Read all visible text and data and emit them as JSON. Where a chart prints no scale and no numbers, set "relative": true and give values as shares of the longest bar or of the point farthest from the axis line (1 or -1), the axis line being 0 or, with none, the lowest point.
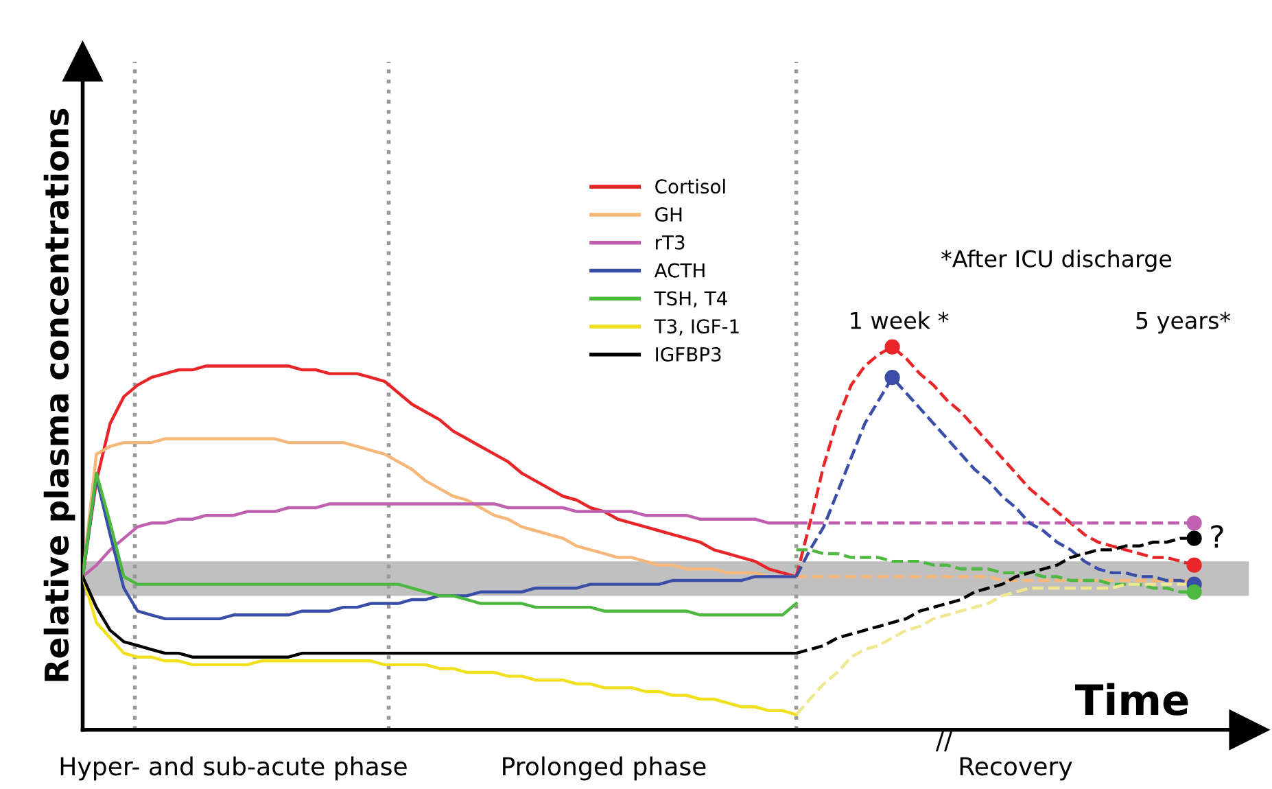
{
  "chart_data": {
    "type": "line",
    "relative": true,
    "ylabel": "Relative plasma concentrations",
    "xlabel": "Time",
    "tick_labels": false,
    "legend": "top",
    "categories": [
      null,
      null,
      null,
      null,
      null,
      null,
      null,
      null,
      null,
      null,
      null,
      null,
      null,
      null,
      null,
      null,
      null,
      null,
      null,
      null,
      null,
      null,
      null,
      null,
      null,
      null,
      null,
      null,
      null,
      null,
      null,
      null,
      null,
      null,
      null,
      null,
      null,
      null,
      null,
      null,
      null,
      null,
      null,
      null,
      null,
      null,
      null,
      null,
      null,
      null,
      null,
      null,
      null,
      null,
      null,
      null,
      null,
      null,
      null,
      null,
      null,
      null,
      null,
      null,
      null,
      null,
      null,
      null,
      null,
      null,
      null,
      null,
      null,
      null,
      null,
      null,
      null,
      null,
      null,
      null,
      null,
      null,
      null,
      null,
      null,
      null
    ],
    "series": [
      {
        "name": "Cortisol",
        "color": "#e8262a",
        "values": [
          0.4,
          0.65,
          0.8,
          0.87,
          0.9,
          0.92,
          0.93,
          0.94,
          0.94,
          0.95,
          0.95,
          0.95,
          0.95,
          0.95,
          0.95,
          0.95,
          0.94,
          0.94,
          0.93,
          0.93,
          0.93,
          0.92,
          0.91,
          0.88,
          0.85,
          0.83,
          0.81,
          0.78,
          0.76,
          0.74,
          0.72,
          0.7,
          0.67,
          0.65,
          0.63,
          0.61,
          0.6,
          0.58,
          0.57,
          0.55,
          0.54,
          0.53,
          0.52,
          0.51,
          0.5,
          0.49,
          0.47,
          0.46,
          0.45,
          0.44,
          0.42,
          0.41,
          0.4,
          null,
          null,
          null,
          null,
          null,
          null,
          null,
          null,
          null,
          null,
          null,
          null,
          null,
          null,
          null,
          null,
          null,
          null,
          null,
          null,
          null,
          null,
          null,
          null,
          null,
          null,
          null,
          null,
          null,
          null,
          null,
          null,
          null
        ]
      },
      {
        "name": "GH",
        "color": "#f5b87a",
        "values": [
          0.4,
          0.72,
          0.74,
          0.75,
          0.75,
          0.75,
          0.76,
          0.76,
          0.76,
          0.76,
          0.76,
          0.76,
          0.76,
          0.76,
          0.76,
          0.75,
          0.75,
          0.75,
          0.75,
          0.75,
          0.74,
          0.73,
          0.72,
          0.7,
          0.68,
          0.65,
          0.63,
          0.61,
          0.6,
          0.58,
          0.56,
          0.55,
          0.53,
          0.52,
          0.51,
          0.5,
          0.48,
          0.47,
          0.46,
          0.45,
          0.45,
          0.44,
          0.43,
          0.43,
          0.42,
          0.42,
          0.42,
          0.41,
          0.41,
          0.41,
          0.4,
          0.4,
          0.4,
          null,
          null,
          null,
          null,
          null,
          null,
          null,
          null,
          null,
          null,
          null,
          null,
          null,
          null,
          null,
          null,
          null,
          null,
          null,
          null,
          null,
          null,
          null,
          null,
          null,
          null,
          null,
          null,
          null,
          null,
          null,
          null,
          null
        ]
      },
      {
        "name": "rT3",
        "color": "#c060b0",
        "values": [
          0.4,
          0.43,
          0.47,
          0.5,
          0.53,
          0.54,
          0.54,
          0.55,
          0.55,
          0.56,
          0.56,
          0.56,
          0.57,
          0.57,
          0.57,
          0.58,
          0.58,
          0.58,
          0.59,
          0.59,
          0.59,
          0.59,
          0.59,
          0.59,
          0.59,
          0.59,
          0.59,
          0.59,
          0.59,
          0.59,
          0.59,
          0.58,
          0.58,
          0.58,
          0.58,
          0.58,
          0.57,
          0.57,
          0.57,
          0.57,
          0.57,
          0.56,
          0.56,
          0.56,
          0.56,
          0.55,
          0.55,
          0.55,
          0.55,
          0.55,
          0.54,
          0.54,
          0.54,
          null,
          null,
          null,
          null,
          null,
          null,
          null,
          null,
          null,
          null,
          null,
          null,
          null,
          null,
          null,
          null,
          null,
          null,
          null,
          null,
          null,
          null,
          null,
          null,
          null,
          null,
          null,
          null,
          null,
          null,
          null,
          null,
          null
        ]
      },
      {
        "name": "ACTH",
        "color": "#3a4ea8",
        "values": [
          0.4,
          0.66,
          0.51,
          0.37,
          0.31,
          0.3,
          0.29,
          0.29,
          0.29,
          0.29,
          0.29,
          0.3,
          0.3,
          0.3,
          0.3,
          0.3,
          0.31,
          0.31,
          0.31,
          0.32,
          0.32,
          0.33,
          0.33,
          0.33,
          0.34,
          0.34,
          0.35,
          0.35,
          0.35,
          0.36,
          0.36,
          0.36,
          0.36,
          0.37,
          0.37,
          0.37,
          0.37,
          0.38,
          0.38,
          0.38,
          0.38,
          0.38,
          0.38,
          0.39,
          0.39,
          0.39,
          0.39,
          0.39,
          0.39,
          0.4,
          0.4,
          0.4,
          0.4,
          null,
          null,
          null,
          null,
          null,
          null,
          null,
          null,
          null,
          null,
          null,
          null,
          null,
          null,
          null,
          null,
          null,
          null,
          null,
          null,
          null,
          null,
          null,
          null,
          null,
          null,
          null,
          null,
          null,
          null,
          null,
          null,
          null
        ]
      },
      {
        "name": "TSH, T4",
        "color": "#4cb840",
        "values": [
          0.4,
          0.67,
          0.54,
          0.4,
          0.38,
          0.38,
          0.38,
          0.38,
          0.38,
          0.38,
          0.38,
          0.38,
          0.38,
          0.38,
          0.38,
          0.38,
          0.38,
          0.38,
          0.38,
          0.38,
          0.38,
          0.38,
          0.38,
          0.38,
          0.37,
          0.36,
          0.35,
          0.35,
          0.34,
          0.33,
          0.33,
          0.33,
          0.33,
          0.32,
          0.32,
          0.32,
          0.32,
          0.32,
          0.31,
          0.31,
          0.31,
          0.31,
          0.31,
          0.31,
          0.31,
          0.3,
          0.3,
          0.3,
          0.3,
          0.3,
          0.3,
          0.3,
          0.33,
          null,
          null,
          null,
          null,
          null,
          null,
          null,
          null,
          null,
          null,
          null,
          null,
          null,
          null,
          null,
          null,
          null,
          null,
          null,
          null,
          null,
          null,
          null,
          null,
          null,
          null,
          null,
          null,
          null,
          null,
          null,
          null,
          null
        ]
      },
      {
        "name": "T3, IGF-1",
        "color": "#f0e020",
        "values": [
          0.4,
          0.28,
          0.24,
          0.2,
          0.19,
          0.19,
          0.18,
          0.18,
          0.17,
          0.17,
          0.17,
          0.17,
          0.17,
          0.18,
          0.18,
          0.18,
          0.18,
          0.18,
          0.18,
          0.18,
          0.18,
          0.18,
          0.17,
          0.17,
          0.17,
          0.17,
          0.16,
          0.16,
          0.15,
          0.15,
          0.15,
          0.14,
          0.14,
          0.13,
          0.13,
          0.13,
          0.12,
          0.12,
          0.11,
          0.11,
          0.11,
          0.1,
          0.1,
          0.09,
          0.09,
          0.08,
          0.08,
          0.07,
          0.06,
          0.06,
          0.05,
          0.05,
          0.04,
          null,
          null,
          null,
          null,
          null,
          null,
          null,
          null,
          null,
          null,
          null,
          null,
          null,
          null,
          null,
          null,
          null,
          null,
          null,
          null,
          null,
          null,
          null,
          null,
          null,
          null,
          null,
          null,
          null,
          null,
          null,
          null,
          null
        ]
      },
      {
        "name": "IGFBP3",
        "color": "#000000",
        "values": [
          0.4,
          0.32,
          0.26,
          0.23,
          0.22,
          0.21,
          0.2,
          0.2,
          0.19,
          0.19,
          0.19,
          0.19,
          0.19,
          0.19,
          0.19,
          0.19,
          0.2,
          0.2,
          0.2,
          0.2,
          0.2,
          0.2,
          0.2,
          0.2,
          0.2,
          0.2,
          0.2,
          0.2,
          0.2,
          0.2,
          0.2,
          0.2,
          0.2,
          0.2,
          0.2,
          0.2,
          0.2,
          0.2,
          0.2,
          0.2,
          0.2,
          0.2,
          0.2,
          0.2,
          0.2,
          0.2,
          0.2,
          0.2,
          0.2,
          0.2,
          0.2,
          0.2,
          0.2,
          null,
          null,
          null,
          null,
          null,
          null,
          null,
          null,
          null,
          null,
          null,
          null,
          null,
          null,
          null,
          null,
          null,
          null,
          null,
          null,
          null,
          null,
          null,
          null,
          null,
          null,
          null,
          null,
          null,
          null,
          null,
          null,
          null
        ]
      },
      {
        "color": "#e8262a",
        "line_style": "dashed",
        "values": [
          null,
          null,
          null,
          null,
          null,
          null,
          null,
          null,
          null,
          null,
          null,
          null,
          null,
          null,
          null,
          null,
          null,
          null,
          null,
          null,
          null,
          null,
          null,
          null,
          null,
          null,
          null,
          null,
          null,
          null,
          null,
          null,
          null,
          null,
          null,
          null,
          null,
          null,
          null,
          null,
          null,
          null,
          null,
          null,
          null,
          null,
          null,
          null,
          null,
          null,
          null,
          null,
          0.4,
          0.54,
          0.69,
          0.81,
          0.9,
          0.95,
          0.98,
          1.0,
          0.97,
          0.93,
          0.9,
          0.86,
          0.83,
          0.79,
          0.75,
          0.71,
          0.67,
          0.63,
          0.6,
          0.57,
          0.54,
          0.51,
          0.49,
          0.48,
          0.47,
          0.46,
          0.45,
          0.45,
          0.44,
          0.43,
          null,
          null,
          null,
          null
        ]
      },
      {
        "color": "#f5b87a",
        "line_style": "dashed",
        "values": [
          null,
          null,
          null,
          null,
          null,
          null,
          null,
          null,
          null,
          null,
          null,
          null,
          null,
          null,
          null,
          null,
          null,
          null,
          null,
          null,
          null,
          null,
          null,
          null,
          null,
          null,
          null,
          null,
          null,
          null,
          null,
          null,
          null,
          null,
          null,
          null,
          null,
          null,
          null,
          null,
          null,
          null,
          null,
          null,
          null,
          null,
          null,
          null,
          null,
          null,
          null,
          null,
          0.4,
          0.4,
          0.4,
          0.4,
          0.4,
          0.4,
          0.4,
          0.4,
          0.4,
          0.4,
          0.4,
          0.4,
          0.4,
          0.4,
          0.4,
          0.39,
          0.39,
          0.39,
          0.39,
          0.39,
          0.39,
          0.39,
          0.39,
          0.39,
          0.39,
          0.39,
          0.39,
          0.39,
          0.39,
          0.39,
          null,
          null,
          null,
          null
        ]
      },
      {
        "color": "#c060b0",
        "line_style": "dashed",
        "values": [
          null,
          null,
          null,
          null,
          null,
          null,
          null,
          null,
          null,
          null,
          null,
          null,
          null,
          null,
          null,
          null,
          null,
          null,
          null,
          null,
          null,
          null,
          null,
          null,
          null,
          null,
          null,
          null,
          null,
          null,
          null,
          null,
          null,
          null,
          null,
          null,
          null,
          null,
          null,
          null,
          null,
          null,
          null,
          null,
          null,
          null,
          null,
          null,
          null,
          null,
          null,
          null,
          0.54,
          0.54,
          0.54,
          0.54,
          0.54,
          0.54,
          0.54,
          0.54,
          0.54,
          0.54,
          0.54,
          0.54,
          0.54,
          0.54,
          0.54,
          0.54,
          0.54,
          0.54,
          0.54,
          0.54,
          0.54,
          0.54,
          0.54,
          0.54,
          0.54,
          0.54,
          0.54,
          0.54,
          0.54,
          0.54,
          null,
          null,
          null,
          null
        ]
      },
      {
        "color": "#3a4ea8",
        "line_style": "dashed",
        "values": [
          null,
          null,
          null,
          null,
          null,
          null,
          null,
          null,
          null,
          null,
          null,
          null,
          null,
          null,
          null,
          null,
          null,
          null,
          null,
          null,
          null,
          null,
          null,
          null,
          null,
          null,
          null,
          null,
          null,
          null,
          null,
          null,
          null,
          null,
          null,
          null,
          null,
          null,
          null,
          null,
          null,
          null,
          null,
          null,
          null,
          null,
          null,
          null,
          null,
          null,
          null,
          null,
          0.4,
          0.47,
          0.53,
          0.62,
          0.71,
          0.8,
          0.86,
          0.92,
          0.88,
          0.84,
          0.8,
          0.76,
          0.72,
          0.68,
          0.65,
          0.61,
          0.58,
          0.54,
          0.52,
          0.49,
          0.47,
          0.44,
          0.42,
          0.41,
          0.41,
          0.4,
          0.4,
          0.39,
          0.39,
          0.38,
          null,
          null,
          null,
          null
        ]
      },
      {
        "color": "#4cb840",
        "line_style": "dashed",
        "values": [
          null,
          null,
          null,
          null,
          null,
          null,
          null,
          null,
          null,
          null,
          null,
          null,
          null,
          null,
          null,
          null,
          null,
          null,
          null,
          null,
          null,
          null,
          null,
          null,
          null,
          null,
          null,
          null,
          null,
          null,
          null,
          null,
          null,
          null,
          null,
          null,
          null,
          null,
          null,
          null,
          null,
          null,
          null,
          null,
          null,
          null,
          null,
          null,
          null,
          null,
          null,
          null,
          0.47,
          0.47,
          0.46,
          0.46,
          0.45,
          0.45,
          0.45,
          0.44,
          0.44,
          0.44,
          0.43,
          0.43,
          0.42,
          0.42,
          0.42,
          0.41,
          0.41,
          0.41,
          0.4,
          0.4,
          0.39,
          0.39,
          0.39,
          0.38,
          0.38,
          0.38,
          0.37,
          0.37,
          0.36,
          0.36,
          null,
          null,
          null,
          null
        ]
      },
      {
        "color": "#f0e890",
        "line_style": "dashed",
        "values": [
          null,
          null,
          null,
          null,
          null,
          null,
          null,
          null,
          null,
          null,
          null,
          null,
          null,
          null,
          null,
          null,
          null,
          null,
          null,
          null,
          null,
          null,
          null,
          null,
          null,
          null,
          null,
          null,
          null,
          null,
          null,
          null,
          null,
          null,
          null,
          null,
          null,
          null,
          null,
          null,
          null,
          null,
          null,
          null,
          null,
          null,
          null,
          null,
          null,
          null,
          null,
          null,
          0.04,
          0.08,
          0.12,
          0.15,
          0.19,
          0.21,
          0.22,
          0.24,
          0.26,
          0.27,
          0.29,
          0.3,
          0.31,
          0.32,
          0.33,
          0.35,
          0.36,
          0.37,
          0.37,
          0.37,
          0.37,
          0.37,
          0.37,
          0.37,
          0.38,
          0.38,
          0.38,
          0.38,
          0.38,
          0.38,
          null,
          null,
          null,
          null
        ]
      },
      {
        "color": "#000000",
        "line_style": "dashed",
        "values": [
          null,
          null,
          null,
          null,
          null,
          null,
          null,
          null,
          null,
          null,
          null,
          null,
          null,
          null,
          null,
          null,
          null,
          null,
          null,
          null,
          null,
          null,
          null,
          null,
          null,
          null,
          null,
          null,
          null,
          null,
          null,
          null,
          null,
          null,
          null,
          null,
          null,
          null,
          null,
          null,
          null,
          null,
          null,
          null,
          null,
          null,
          null,
          null,
          null,
          null,
          null,
          null,
          0.2,
          0.21,
          0.22,
          0.24,
          0.25,
          0.26,
          0.27,
          0.28,
          0.29,
          0.31,
          0.32,
          0.33,
          0.34,
          0.36,
          0.37,
          0.38,
          0.4,
          0.41,
          0.42,
          0.43,
          0.45,
          0.46,
          0.47,
          0.47,
          0.48,
          0.48,
          0.49,
          0.49,
          0.5,
          0.5,
          null,
          null,
          null,
          null
        ]
      },
      {
        "color": "#e8262a",
        "marker": "circle",
        "values": [
          null,
          null,
          null,
          null,
          null,
          null,
          null,
          null,
          null,
          null,
          null,
          null,
          null,
          null,
          null,
          null,
          null,
          null,
          null,
          null,
          null,
          null,
          null,
          null,
          null,
          null,
          null,
          null,
          null,
          null,
          null,
          null,
          null,
          null,
          null,
          null,
          null,
          null,
          null,
          null,
          null,
          null,
          null,
          null,
          null,
          null,
          null,
          null,
          null,
          null,
          null,
          null,
          null,
          null,
          null,
          null,
          null,
          null,
          null,
          1.0,
          null,
          null,
          null,
          null,
          null,
          null,
          null,
          null,
          null,
          null,
          null,
          null,
          null,
          null,
          null,
          null,
          null,
          null,
          null,
          null,
          null,
          null,
          null,
          null,
          null,
          null
        ]
      },
      {
        "color": "#e8262a",
        "marker": "circle",
        "values": [
          null,
          null,
          null,
          null,
          null,
          null,
          null,
          null,
          null,
          null,
          null,
          null,
          null,
          null,
          null,
          null,
          null,
          null,
          null,
          null,
          null,
          null,
          null,
          null,
          null,
          null,
          null,
          null,
          null,
          null,
          null,
          null,
          null,
          null,
          null,
          null,
          null,
          null,
          null,
          null,
          null,
          null,
          null,
          null,
          null,
          null,
          null,
          null,
          null,
          null,
          null,
          null,
          null,
          null,
          null,
          null,
          null,
          null,
          null,
          null,
          null,
          null,
          null,
          null,
          null,
          null,
          null,
          null,
          null,
          null,
          null,
          null,
          null,
          null,
          null,
          null,
          null,
          null,
          null,
          null,
          null,
          0.43,
          null,
          null,
          null,
          null
        ]
      },
      {
        "color": "#3a4ea8",
        "marker": "circle",
        "values": [
          null,
          null,
          null,
          null,
          null,
          null,
          null,
          null,
          null,
          null,
          null,
          null,
          null,
          null,
          null,
          null,
          null,
          null,
          null,
          null,
          null,
          null,
          null,
          null,
          null,
          null,
          null,
          null,
          null,
          null,
          null,
          null,
          null,
          null,
          null,
          null,
          null,
          null,
          null,
          null,
          null,
          null,
          null,
          null,
          null,
          null,
          null,
          null,
          null,
          null,
          null,
          null,
          null,
          null,
          null,
          null,
          null,
          null,
          null,
          0.92,
          null,
          null,
          null,
          null,
          null,
          null,
          null,
          null,
          null,
          null,
          null,
          null,
          null,
          null,
          null,
          null,
          null,
          null,
          null,
          null,
          null,
          null,
          null,
          null,
          null,
          null
        ]
      },
      {
        "color": "#3a4ea8",
        "marker": "circle",
        "values": [
          null,
          null,
          null,
          null,
          null,
          null,
          null,
          null,
          null,
          null,
          null,
          null,
          null,
          null,
          null,
          null,
          null,
          null,
          null,
          null,
          null,
          null,
          null,
          null,
          null,
          null,
          null,
          null,
          null,
          null,
          null,
          null,
          null,
          null,
          null,
          null,
          null,
          null,
          null,
          null,
          null,
          null,
          null,
          null,
          null,
          null,
          null,
          null,
          null,
          null,
          null,
          null,
          null,
          null,
          null,
          null,
          null,
          null,
          null,
          null,
          null,
          null,
          null,
          null,
          null,
          null,
          null,
          null,
          null,
          null,
          null,
          null,
          null,
          null,
          null,
          null,
          null,
          null,
          null,
          null,
          null,
          0.38,
          null,
          null,
          null,
          null
        ]
      },
      {
        "color": "#c060b0",
        "marker": "circle",
        "values": [
          null,
          null,
          null,
          null,
          null,
          null,
          null,
          null,
          null,
          null,
          null,
          null,
          null,
          null,
          null,
          null,
          null,
          null,
          null,
          null,
          null,
          null,
          null,
          null,
          null,
          null,
          null,
          null,
          null,
          null,
          null,
          null,
          null,
          null,
          null,
          null,
          null,
          null,
          null,
          null,
          null,
          null,
          null,
          null,
          null,
          null,
          null,
          null,
          null,
          null,
          null,
          null,
          null,
          null,
          null,
          null,
          null,
          null,
          null,
          null,
          null,
          null,
          null,
          null,
          null,
          null,
          null,
          null,
          null,
          null,
          null,
          null,
          null,
          null,
          null,
          null,
          null,
          null,
          null,
          null,
          null,
          0.54,
          null,
          null,
          null,
          null
        ]
      },
      {
        "color": "#000000",
        "marker": "circle",
        "values": [
          null,
          null,
          null,
          null,
          null,
          null,
          null,
          null,
          null,
          null,
          null,
          null,
          null,
          null,
          null,
          null,
          null,
          null,
          null,
          null,
          null,
          null,
          null,
          null,
          null,
          null,
          null,
          null,
          null,
          null,
          null,
          null,
          null,
          null,
          null,
          null,
          null,
          null,
          null,
          null,
          null,
          null,
          null,
          null,
          null,
          null,
          null,
          null,
          null,
          null,
          null,
          null,
          null,
          null,
          null,
          null,
          null,
          null,
          null,
          null,
          null,
          null,
          null,
          null,
          null,
          null,
          null,
          null,
          null,
          null,
          null,
          null,
          null,
          null,
          null,
          null,
          null,
          null,
          null,
          null,
          null,
          0.5,
          null,
          null,
          null,
          null
        ]
      },
      {
        "color": "#4cb840",
        "marker": "circle",
        "values": [
          null,
          null,
          null,
          null,
          null,
          null,
          null,
          null,
          null,
          null,
          null,
          null,
          null,
          null,
          null,
          null,
          null,
          null,
          null,
          null,
          null,
          null,
          null,
          null,
          null,
          null,
          null,
          null,
          null,
          null,
          null,
          null,
          null,
          null,
          null,
          null,
          null,
          null,
          null,
          null,
          null,
          null,
          null,
          null,
          null,
          null,
          null,
          null,
          null,
          null,
          null,
          null,
          null,
          null,
          null,
          null,
          null,
          null,
          null,
          null,
          null,
          null,
          null,
          null,
          null,
          null,
          null,
          null,
          null,
          null,
          null,
          null,
          null,
          null,
          null,
          null,
          null,
          null,
          null,
          null,
          null,
          0.36,
          null,
          null,
          null,
          null
        ]
      }
    ],
    "bands": [
      {
        "axis": "y",
        "from": 0.35,
        "to": 0.44,
        "color": "#c0c0c0"
      }
    ],
    "annotations": [
      "Hyper- and sub-acute phase",
      "Prolonged phase",
      "Recovery",
      "//",
      "*After ICU discharge",
      "1 week *",
      "5 years*",
      "?"
    ]
  }
}
